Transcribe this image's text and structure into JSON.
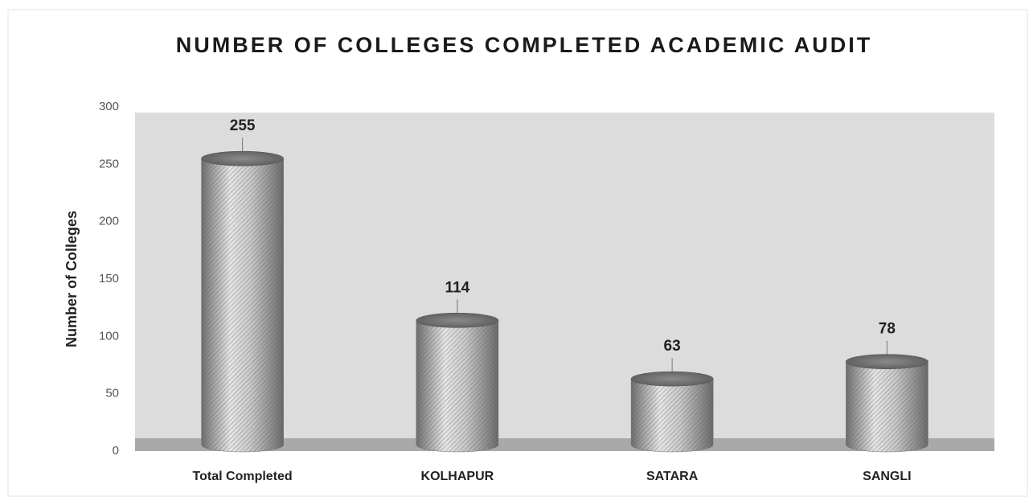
{
  "chart_data": {
    "type": "bar",
    "title": "NUMBER OF COLLEGES COMPLETED ACADEMIC AUDIT",
    "y_label": "Number of Colleges",
    "categories": [
      "Total Completed",
      "KOLHAPUR",
      "SATARA",
      "SANGLI"
    ],
    "values": [
      255,
      114,
      63,
      78
    ],
    "color": "#a6a6a6",
    "ylim": [
      0,
      300
    ],
    "yticks": [
      0,
      50,
      100,
      150,
      200,
      250,
      300
    ],
    "grid": false
  }
}
